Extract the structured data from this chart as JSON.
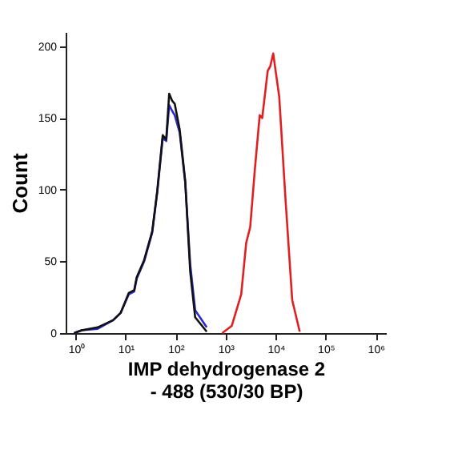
{
  "chart_data": {
    "type": "line",
    "xlabel": "IMP dehydrogenase 2\n- 488 (530/30 BP)",
    "ylabel": "Count",
    "log": "x",
    "grid": false,
    "legend": false,
    "marker": "none",
    "line_style": "solid",
    "xlim": [
      0.63,
      1600000
    ],
    "ylim": [
      0,
      210
    ],
    "xticks": [
      {
        "value": 1,
        "label": "10⁰"
      },
      {
        "value": 10,
        "label": "10¹"
      },
      {
        "value": 100,
        "label": "10²"
      },
      {
        "value": 1000,
        "label": "10³"
      },
      {
        "value": 10000,
        "label": "10⁴"
      },
      {
        "value": 100000,
        "label": "10⁵"
      },
      {
        "value": 1000000,
        "label": "10⁶"
      }
    ],
    "yticks": [
      0,
      50,
      100,
      150,
      200
    ],
    "series": [
      {
        "color": "#2b2bd0",
        "x": [
          0.93,
          1.32,
          2.75,
          5.6,
          7.9,
          11.5,
          14.8,
          16.6,
          23.4,
          33.9,
          42.7,
          55,
          64.6,
          74.1,
          85,
          95.5,
          120,
          155,
          195,
          245,
          417
        ],
        "values": [
          0,
          2,
          3,
          9,
          14,
          27,
          29,
          38,
          50,
          70,
          98,
          136,
          134,
          159,
          155,
          152,
          140,
          105,
          48,
          16,
          4
        ]
      },
      {
        "color": "#111111",
        "x": [
          0.93,
          1.32,
          2.75,
          5.6,
          7.9,
          11.5,
          14.8,
          16.6,
          23.4,
          33.9,
          42.7,
          55,
          64.6,
          74.1,
          85,
          95.5,
          120,
          155,
          195,
          245,
          417
        ],
        "values": [
          0,
          2,
          4,
          9,
          14,
          28,
          30,
          39,
          51,
          71,
          99,
          138,
          135,
          167,
          162,
          160,
          142,
          106,
          43,
          11,
          1
        ]
      },
      {
        "color": "#e02020",
        "x": [
          851,
          1318,
          2042,
          2570,
          3090,
          3802,
          4786,
          5370,
          6918,
          7762,
          8913,
          11749,
          15849,
          21380,
          30200
        ],
        "values": [
          0,
          5,
          27,
          63,
          74,
          113,
          152,
          150,
          183,
          186,
          195,
          165,
          91,
          23,
          1
        ]
      }
    ]
  }
}
